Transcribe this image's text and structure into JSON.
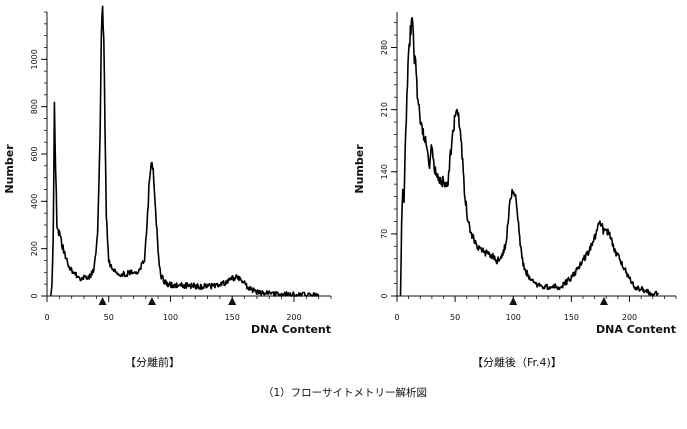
{
  "figure_caption": "（1）フローサイトメトリー解析図",
  "chart_data": [
    {
      "type": "line",
      "panel_caption": "【分離前】",
      "xlabel": "DNA Content",
      "ylabel": "Number",
      "xlim": [
        0,
        230
      ],
      "ylim": [
        0,
        1200
      ],
      "x_ticks": [
        0,
        50,
        100,
        150,
        200
      ],
      "y_ticks": [
        0,
        200,
        400,
        600,
        800,
        1000
      ],
      "y_minor_step": 50,
      "grid": false,
      "markers": {
        "symbol": "triangle-up",
        "x": [
          45,
          85,
          150
        ]
      },
      "series": [
        {
          "x": [
            3,
            4,
            5,
            6,
            7,
            8,
            9,
            10,
            12,
            15,
            18,
            22,
            26,
            30,
            35,
            38,
            41,
            43,
            44,
            45,
            46,
            47,
            48,
            50,
            53,
            56,
            60,
            65,
            70,
            75,
            79,
            81,
            83,
            84,
            85,
            86,
            88,
            90,
            92,
            95,
            98,
            102,
            108,
            115,
            122,
            130,
            138,
            143,
            147,
            150,
            153,
            156,
            159,
            162,
            166,
            172,
            180,
            190,
            200,
            210,
            215,
            220
          ],
          "y": [
            0,
            50,
            250,
            810,
            550,
            300,
            280,
            260,
            220,
            160,
            120,
            95,
            80,
            75,
            80,
            110,
            250,
            700,
            1080,
            1200,
            1100,
            700,
            350,
            150,
            110,
            100,
            95,
            95,
            100,
            110,
            160,
            300,
            500,
            560,
            570,
            540,
            360,
            180,
            90,
            60,
            50,
            45,
            45,
            45,
            40,
            40,
            45,
            55,
            60,
            75,
            80,
            70,
            60,
            40,
            25,
            15,
            10,
            8,
            6,
            4,
            3,
            2
          ]
        }
      ]
    },
    {
      "type": "line",
      "panel_caption": "【分離後（Fr.4)】",
      "xlabel": "DNA Content",
      "ylabel": "Number",
      "xlim": [
        0,
        240
      ],
      "ylim": [
        0,
        320
      ],
      "x_ticks": [
        0,
        50,
        100,
        150,
        200
      ],
      "y_ticks": [
        0,
        70,
        140,
        210,
        280
      ],
      "y_minor_step": 14,
      "grid": false,
      "markers": {
        "symbol": "triangle-up",
        "x": [
          100,
          178
        ]
      },
      "series": [
        {
          "x": [
            3,
            4,
            5,
            6,
            7,
            8,
            9,
            10,
            11,
            12,
            13,
            14,
            15,
            16,
            17,
            18,
            20,
            22,
            24,
            26,
            28,
            30,
            32,
            34,
            36,
            38,
            40,
            42,
            44,
            46,
            48,
            50,
            52,
            54,
            56,
            58,
            60,
            62,
            64,
            66,
            68,
            70,
            74,
            78,
            82,
            86,
            90,
            94,
            96,
            98,
            100,
            102,
            104,
            106,
            108,
            110,
            115,
            120,
            125,
            130,
            135,
            140,
            145,
            150,
            155,
            160,
            165,
            170,
            173,
            175,
            177,
            179,
            181,
            183,
            185,
            188,
            192,
            196,
            200,
            205,
            210,
            215,
            220,
            225
          ],
          "y": [
            0,
            80,
            120,
            110,
            160,
            200,
            240,
            270,
            290,
            300,
            310,
            290,
            265,
            260,
            240,
            220,
            200,
            185,
            175,
            165,
            150,
            170,
            145,
            140,
            135,
            125,
            130,
            120,
            130,
            160,
            180,
            205,
            215,
            190,
            160,
            120,
            95,
            80,
            70,
            65,
            60,
            55,
            50,
            48,
            45,
            40,
            45,
            60,
            90,
            115,
            120,
            110,
            90,
            60,
            40,
            30,
            18,
            12,
            10,
            10,
            12,
            10,
            15,
            20,
            30,
            40,
            50,
            65,
            80,
            85,
            75,
            70,
            72,
            68,
            60,
            50,
            40,
            30,
            20,
            10,
            8,
            5,
            3,
            2
          ]
        }
      ]
    }
  ]
}
